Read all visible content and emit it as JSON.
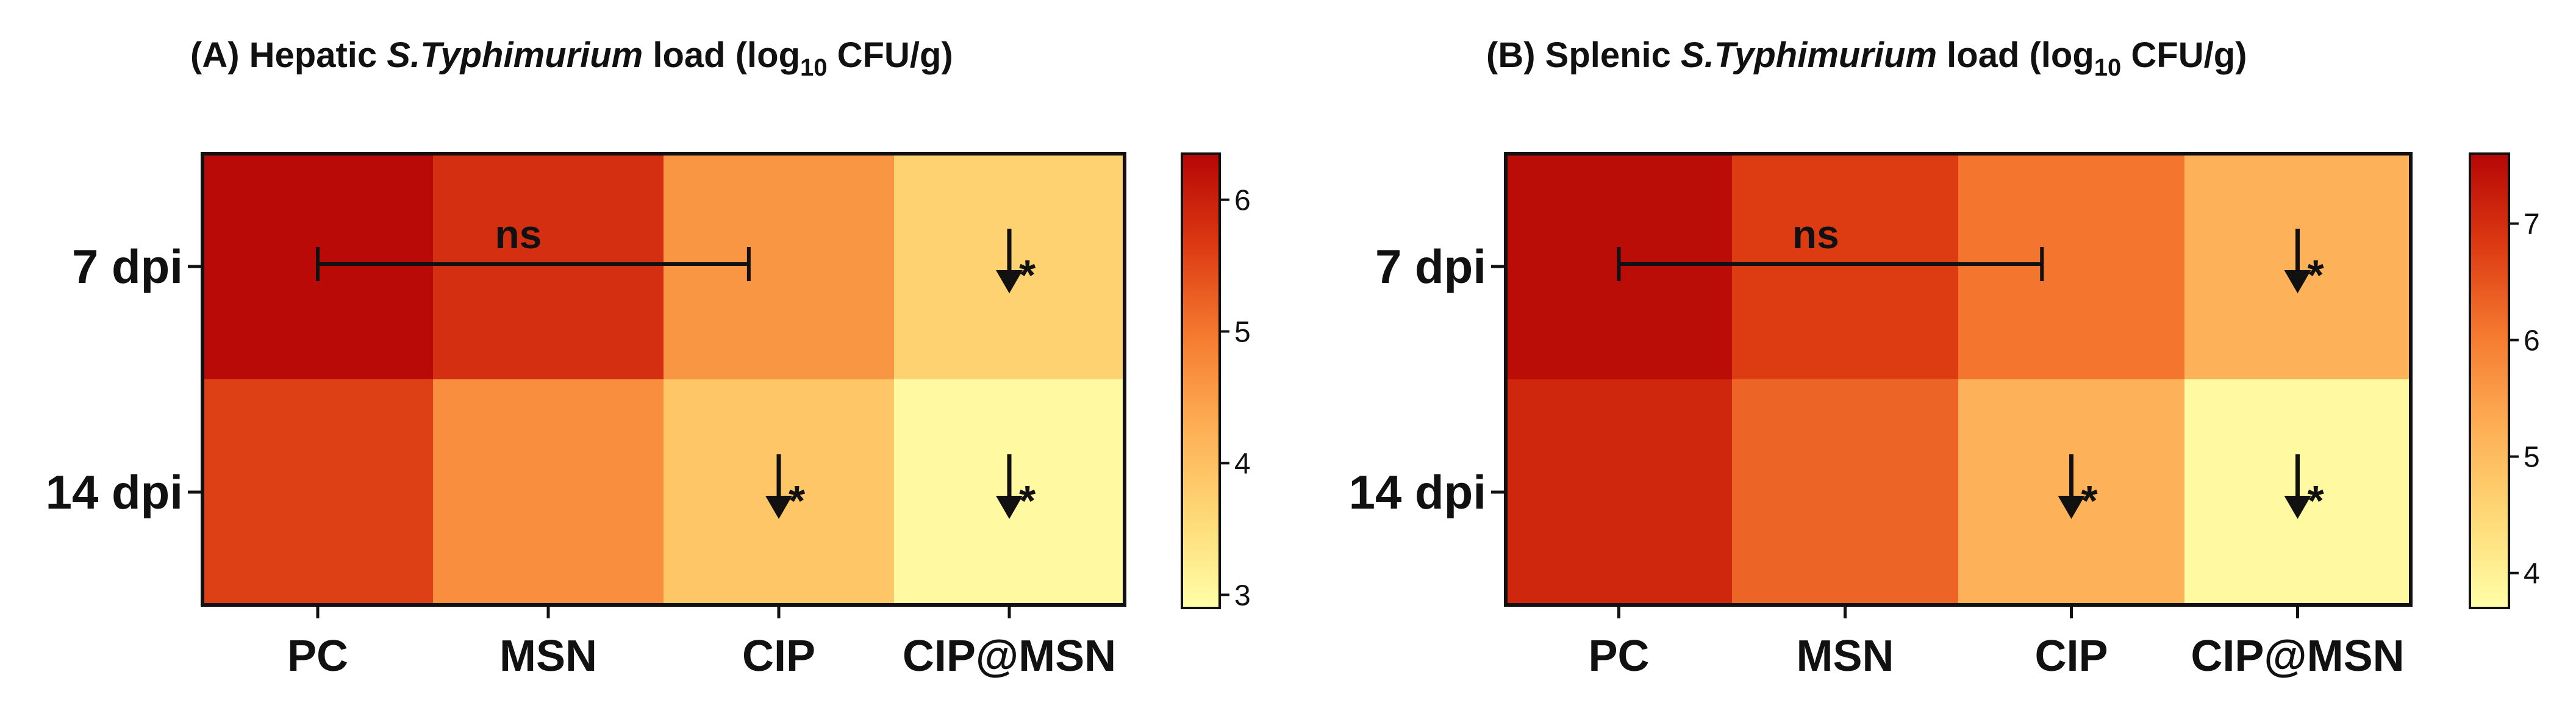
{
  "chart_data": [
    {
      "type": "heatmap",
      "panel": "A",
      "title_parts": {
        "prefix": "(A) Hepatic ",
        "organism": "S.Typhimurium",
        "suffix": " load (log",
        "subscript": "10",
        "unit": " CFU/g)"
      },
      "rows": [
        "7 dpi",
        "14 dpi"
      ],
      "columns": [
        "PC",
        "MSN",
        "CIP",
        "CIP@MSN"
      ],
      "values": [
        [
          6.3,
          5.8,
          4.6,
          3.7
        ],
        [
          5.6,
          4.7,
          3.9,
          3.0
        ]
      ],
      "colorbar": {
        "min": 2.9,
        "max": 6.35,
        "ticks": [
          3,
          4,
          5,
          6
        ]
      },
      "bracket": {
        "row": 0,
        "from_col": 0,
        "to_col": 2,
        "label": "ns"
      },
      "markers": [
        {
          "row": 0,
          "col": 3,
          "label": "*"
        },
        {
          "row": 1,
          "col": 2,
          "label": "*"
        },
        {
          "row": 1,
          "col": 3,
          "label": "*"
        }
      ]
    },
    {
      "type": "heatmap",
      "panel": "B",
      "title_parts": {
        "prefix": "(B) Splenic ",
        "organism": "S.Typhimurium",
        "suffix": " load (log",
        "subscript": "10",
        "unit": " CFU/g)"
      },
      "rows": [
        "7 dpi",
        "14 dpi"
      ],
      "columns": [
        "PC",
        "MSN",
        "CIP",
        "CIP@MSN"
      ],
      "values": [
        [
          7.5,
          6.8,
          6.1,
          5.2
        ],
        [
          7.1,
          6.3,
          5.2,
          3.8
        ]
      ],
      "colorbar": {
        "min": 3.7,
        "max": 7.6,
        "ticks": [
          4,
          5,
          6,
          7
        ]
      },
      "bracket": {
        "row": 0,
        "from_col": 0,
        "to_col": 2,
        "label": "ns"
      },
      "markers": [
        {
          "row": 0,
          "col": 3,
          "label": "*"
        },
        {
          "row": 1,
          "col": 2,
          "label": "*"
        },
        {
          "row": 1,
          "col": 3,
          "label": "*"
        }
      ]
    }
  ],
  "colors": {
    "scale": [
      "#ffffa8",
      "#fed976",
      "#fdae55",
      "#f57a30",
      "#dc3a12",
      "#b60606"
    ],
    "ink": "#111111"
  }
}
